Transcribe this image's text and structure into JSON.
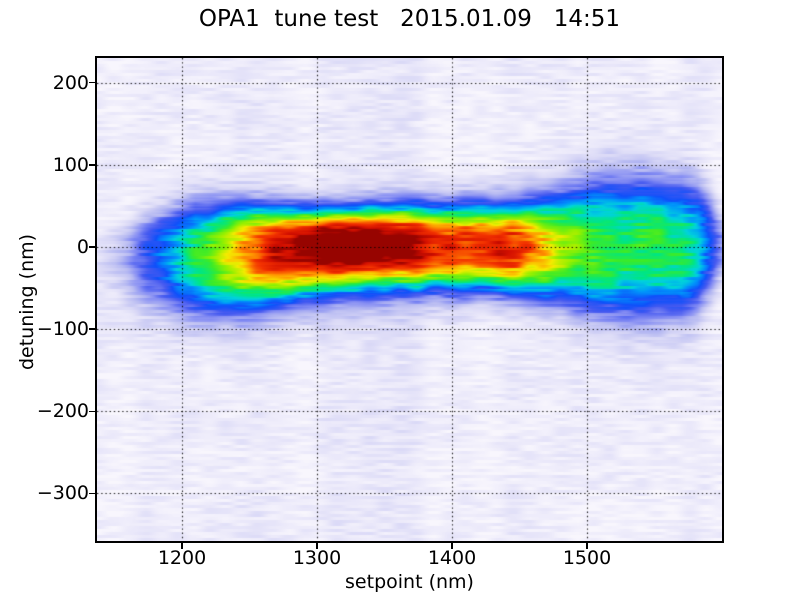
{
  "chart_data": {
    "type": "heatmap",
    "title": "OPA1  tune test   2015.01.09   14:51",
    "xlabel": "setpoint (nm)",
    "ylabel": "detuning (nm)",
    "xlim": [
      1137,
      1600
    ],
    "ylim": [
      -358,
      230
    ],
    "xticks": [
      1200,
      1300,
      1400,
      1500
    ],
    "xtick_labels": [
      "1200",
      "1300",
      "1400",
      "1500"
    ],
    "yticks": [
      200,
      100,
      0,
      -100,
      -200,
      -300
    ],
    "ytick_labels": [
      "200",
      "100",
      "0",
      "−100",
      "−200",
      "−300"
    ],
    "grid_style": "dotted",
    "grid_color": "#000000",
    "frame_color": "#000000",
    "background_level": 0.055,
    "colormap_stops": [
      [
        0.0,
        "#f8f6fd"
      ],
      [
        0.07,
        "#ebe9fa"
      ],
      [
        0.14,
        "#d8d7f6"
      ],
      [
        0.22,
        "#b7baf2"
      ],
      [
        0.3,
        "#868ef3"
      ],
      [
        0.37,
        "#465af0"
      ],
      [
        0.44,
        "#0f50fa"
      ],
      [
        0.5,
        "#0096fa"
      ],
      [
        0.55,
        "#00d2dc"
      ],
      [
        0.6,
        "#00e682"
      ],
      [
        0.66,
        "#3ceb28"
      ],
      [
        0.72,
        "#96f000"
      ],
      [
        0.78,
        "#f5eb00"
      ],
      [
        0.84,
        "#ff9600"
      ],
      [
        0.9,
        "#f33200"
      ],
      [
        0.96,
        "#d20f00"
      ],
      [
        1.0,
        "#940300"
      ]
    ],
    "ridge": {
      "shape_exponent": 2.7,
      "setpoints": [
        1137,
        1150,
        1165,
        1180,
        1195,
        1210,
        1225,
        1240,
        1255,
        1270,
        1285,
        1300,
        1315,
        1330,
        1345,
        1360,
        1375,
        1390,
        1405,
        1420,
        1435,
        1450,
        1465,
        1480,
        1495,
        1510,
        1525,
        1540,
        1555,
        1570,
        1582,
        1592,
        1600
      ],
      "peak": [
        0.05,
        0.12,
        0.26,
        0.35,
        0.45,
        0.55,
        0.63,
        0.72,
        0.8,
        0.87,
        0.92,
        0.95,
        0.97,
        0.98,
        0.97,
        0.94,
        0.91,
        0.88,
        0.86,
        0.87,
        0.88,
        0.84,
        0.76,
        0.68,
        0.63,
        0.6,
        0.59,
        0.6,
        0.61,
        0.58,
        0.5,
        0.38,
        0.25
      ],
      "sigma_nm": [
        18,
        24,
        30,
        36,
        42,
        46,
        45,
        43,
        41,
        39,
        38,
        37,
        36,
        36,
        37,
        38,
        40,
        41,
        42,
        43,
        44,
        46,
        50,
        55,
        62,
        68,
        71,
        72,
        71,
        69,
        62,
        48,
        32
      ],
      "center_nm": [
        -5,
        -4,
        -3,
        -2,
        -1,
        0,
        1,
        2,
        2,
        3,
        3,
        3,
        4,
        4,
        4,
        3,
        2,
        1,
        0,
        0,
        -1,
        -2,
        -2,
        -1,
        0,
        0,
        0,
        0,
        0,
        0,
        0,
        0,
        0
      ],
      "below_width_factor": [
        1.4,
        1.4,
        1.4,
        1.35,
        1.3,
        1.3,
        1.3,
        1.3,
        1.3,
        1.3,
        1.25,
        1.25,
        1.2,
        1.2,
        1.15,
        1.1,
        1.1,
        1.05,
        1.05,
        1.0,
        1.0,
        1.0,
        1.0,
        1.0,
        1.0,
        1.0,
        1.0,
        1.0,
        1.0,
        1.0,
        1.0,
        1.0,
        1.0
      ]
    },
    "secondary_lobe": {
      "setpoint_center": 1265,
      "setpoint_sigma": 75,
      "detuning_center": -62,
      "detuning_sigma": 30,
      "amplitude": 0.16
    },
    "texture": {
      "streak_amplitude": 0.05,
      "streak_cell_w": 16,
      "streak_cell_h": 3,
      "column_amplitude": 0.027,
      "column_cell_w": 26,
      "column2_amplitude": 0.02,
      "column2_cell_w": 64,
      "cloud_amplitude": 0.022,
      "cloud_cell_w": 70,
      "cloud_cell_h": 46
    }
  }
}
